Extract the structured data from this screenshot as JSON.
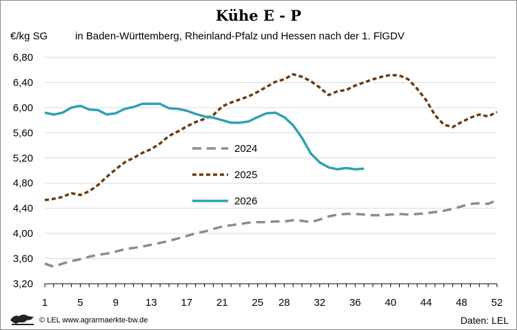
{
  "chart_data": {
    "type": "line",
    "title": "Kühe E - P",
    "ylabel": "€/kg SG",
    "subtitle": "in Baden-Württemberg, Rheinland-Pfalz und Hessen nach der 1. FlGDV",
    "ylim": [
      3.2,
      6.8
    ],
    "y_ticks": [
      "3,20",
      "3,60",
      "4,00",
      "4,40",
      "4,80",
      "5,20",
      "5,60",
      "6,00",
      "6,40",
      "6,80"
    ],
    "xlim": [
      1,
      52
    ],
    "x_ticks": [
      "1",
      "5",
      "9",
      "13",
      "17",
      "21",
      "25",
      "28",
      "32",
      "36",
      "40",
      "44",
      "48",
      "52"
    ],
    "legend_position": "center",
    "series": [
      {
        "name": "2024",
        "color": "#8c8c8c",
        "dash": "dash",
        "x": [
          1,
          2,
          3,
          4,
          5,
          6,
          7,
          8,
          9,
          10,
          11,
          12,
          13,
          14,
          15,
          16,
          17,
          18,
          19,
          20,
          21,
          22,
          23,
          24,
          25,
          26,
          27,
          28,
          29,
          30,
          31,
          32,
          33,
          34,
          35,
          36,
          37,
          38,
          39,
          40,
          41,
          42,
          43,
          44,
          45,
          46,
          47,
          48,
          49,
          50,
          51,
          52
        ],
        "y": [
          3.52,
          3.47,
          3.52,
          3.56,
          3.59,
          3.63,
          3.66,
          3.68,
          3.71,
          3.75,
          3.77,
          3.79,
          3.82,
          3.85,
          3.88,
          3.92,
          3.96,
          4.0,
          4.03,
          4.07,
          4.11,
          4.13,
          4.15,
          4.17,
          4.18,
          4.18,
          4.19,
          4.19,
          4.21,
          4.2,
          4.18,
          4.22,
          4.27,
          4.3,
          4.31,
          4.31,
          4.3,
          4.29,
          4.29,
          4.3,
          4.31,
          4.3,
          4.31,
          4.32,
          4.34,
          4.36,
          4.39,
          4.43,
          4.47,
          4.48,
          4.47,
          4.53
        ]
      },
      {
        "name": "2025",
        "color": "#6b3a10",
        "dash": "dot",
        "x": [
          1,
          2,
          3,
          4,
          5,
          6,
          7,
          8,
          9,
          10,
          11,
          12,
          13,
          14,
          15,
          16,
          17,
          18,
          19,
          20,
          21,
          22,
          23,
          24,
          25,
          26,
          27,
          28,
          29,
          30,
          31,
          32,
          33,
          34,
          35,
          36,
          37,
          38,
          39,
          40,
          41,
          42,
          43,
          44,
          45,
          46,
          47,
          48,
          49,
          50,
          51,
          52
        ],
        "y": [
          4.53,
          4.55,
          4.58,
          4.64,
          4.61,
          4.67,
          4.77,
          4.9,
          5.02,
          5.13,
          5.2,
          5.28,
          5.34,
          5.43,
          5.55,
          5.62,
          5.7,
          5.77,
          5.82,
          5.88,
          6.02,
          6.08,
          6.13,
          6.18,
          6.25,
          6.33,
          6.41,
          6.45,
          6.53,
          6.49,
          6.42,
          6.32,
          6.2,
          6.26,
          6.28,
          6.35,
          6.4,
          6.45,
          6.49,
          6.52,
          6.51,
          6.45,
          6.3,
          6.12,
          5.88,
          5.73,
          5.69,
          5.77,
          5.84,
          5.89,
          5.86,
          5.93
        ]
      },
      {
        "name": "2026",
        "color": "#31a0b3",
        "dash": "solid",
        "x": [
          1,
          2,
          3,
          4,
          5,
          6,
          7,
          8,
          9,
          10,
          11,
          12,
          13,
          14,
          15,
          16,
          17,
          18,
          19,
          20,
          21,
          22,
          23,
          24,
          25,
          26,
          27,
          28,
          29,
          30,
          31,
          32,
          33,
          34,
          35,
          36,
          37
        ],
        "y": [
          5.92,
          5.89,
          5.92,
          6.0,
          6.03,
          5.97,
          5.96,
          5.89,
          5.91,
          5.98,
          6.01,
          6.06,
          6.06,
          6.06,
          5.99,
          5.98,
          5.95,
          5.9,
          5.86,
          5.84,
          5.8,
          5.76,
          5.76,
          5.78,
          5.85,
          5.91,
          5.92,
          5.85,
          5.72,
          5.52,
          5.27,
          5.13,
          5.05,
          5.02,
          5.04,
          5.02,
          5.03
        ]
      }
    ]
  },
  "footer": {
    "copyright": "© LEL www.agrarmaerkte-bw.de",
    "source": "Daten: LEL",
    "logo_icon": "lion-logo-icon"
  }
}
